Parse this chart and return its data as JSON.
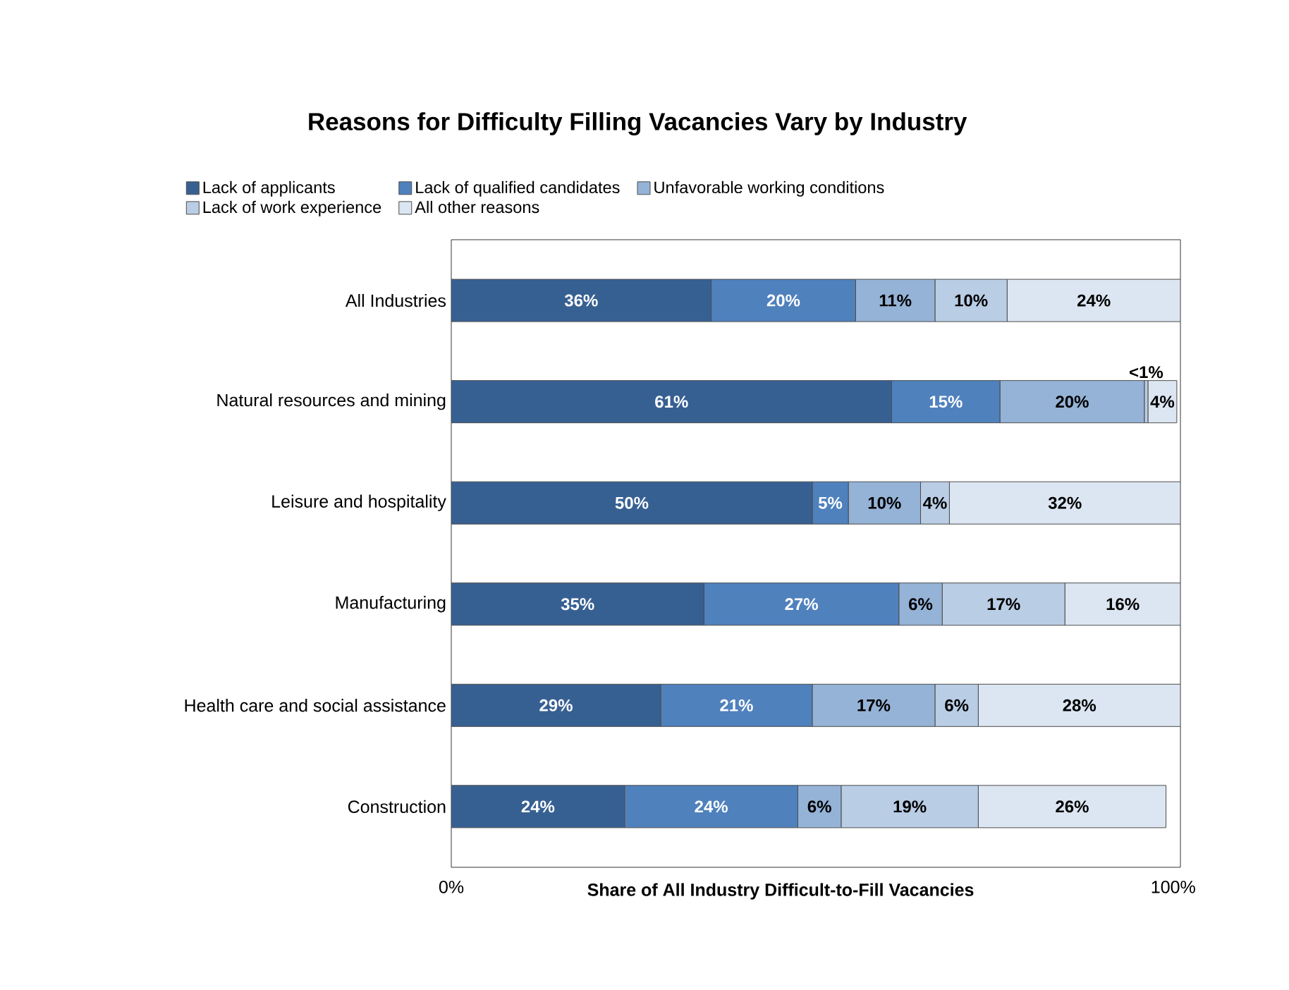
{
  "chart_data": {
    "type": "bar",
    "orientation": "horizontal",
    "stacked": true,
    "title": "Reasons for Difficulty Filling Vacancies Vary by Industry",
    "xlabel": "Share of All Industry Difficult-to-Fill Vacancies",
    "categories": [
      "All Industries",
      "Natural resources and mining",
      "Leisure and hospitality",
      "Manufacturing",
      "Health care and social assistance",
      "Construction"
    ],
    "series": [
      {
        "name": "Lack of applicants",
        "color": "#376092",
        "values": [
          36,
          61,
          50,
          35,
          29,
          24
        ],
        "value_labels": [
          "36%",
          "61%",
          "50%",
          "35%",
          "29%",
          "24%"
        ]
      },
      {
        "name": "Lack of qualified candidates",
        "color": "#4f81bd",
        "values": [
          20,
          15,
          5,
          27,
          21,
          24
        ],
        "value_labels": [
          "20%",
          "15%",
          "5%",
          "27%",
          "21%",
          "24%"
        ]
      },
      {
        "name": "Unfavorable working conditions",
        "color": "#95b3d7",
        "values": [
          11,
          20,
          10,
          6,
          17,
          6
        ],
        "value_labels": [
          "11%",
          "20%",
          "10%",
          "6%",
          "17%",
          "6%"
        ]
      },
      {
        "name": "Lack of work experience",
        "color": "#b9cde5",
        "values": [
          10,
          0.5,
          4,
          17,
          6,
          19
        ],
        "value_labels": [
          "10%",
          "<1%",
          "4%",
          "17%",
          "6%",
          "19%"
        ]
      },
      {
        "name": "All other reasons",
        "color": "#dce6f2",
        "values": [
          24,
          4,
          32,
          16,
          28,
          26
        ],
        "value_labels": [
          "24%",
          "4%",
          "32%",
          "16%",
          "28%",
          "26%"
        ]
      }
    ],
    "xlim": [
      0,
      101
    ],
    "xticks": [
      {
        "value": 0,
        "label": "0%"
      },
      {
        "value": 100,
        "label": "100%"
      }
    ],
    "grid": false,
    "legend": "top"
  }
}
